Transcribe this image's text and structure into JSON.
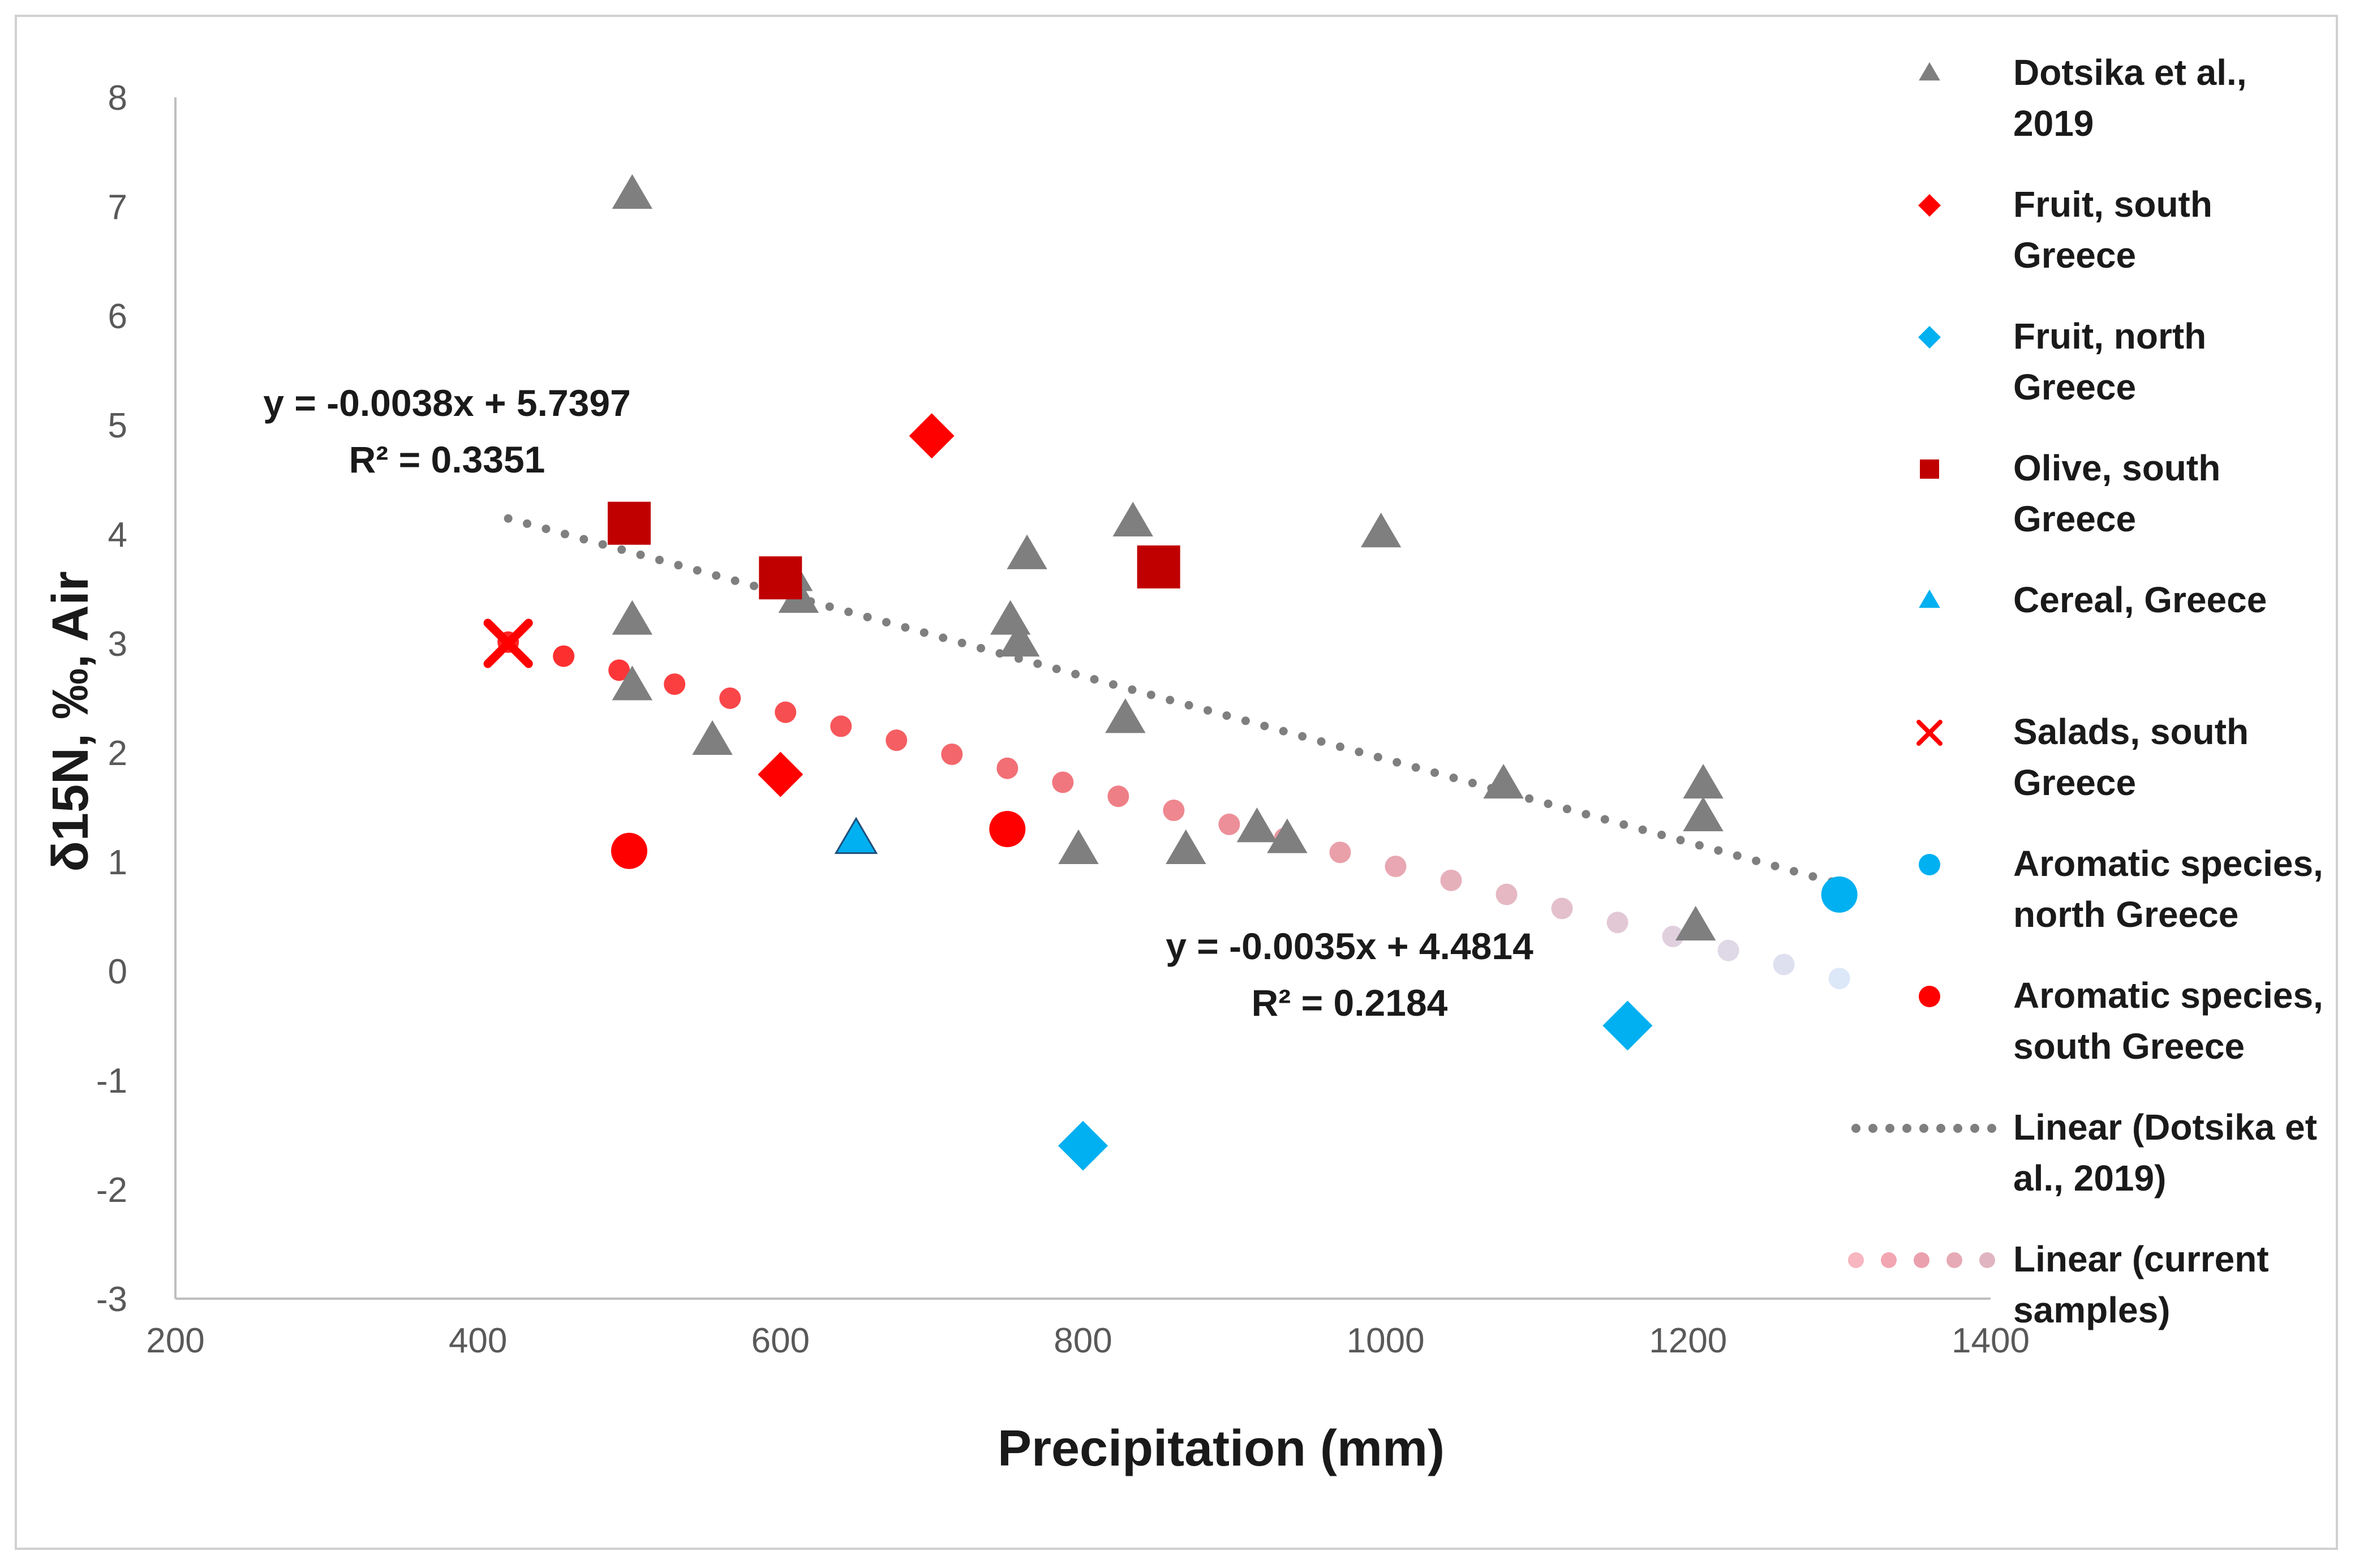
{
  "chart_data": {
    "type": "scatter",
    "xlabel": "Precipitation (mm)",
    "ylabel": "δ15N, ‰, Air",
    "xlim": [
      200,
      1400
    ],
    "ylim": [
      -3,
      8
    ],
    "xticks": [
      "200",
      "400",
      "600",
      "800",
      "1000",
      "1200",
      "1400"
    ],
    "yticks": [
      "-3",
      "-2",
      "-1",
      "0",
      "1",
      "2",
      "3",
      "4",
      "5",
      "6",
      "7",
      "8"
    ],
    "grid": false,
    "legend_position": "right",
    "series": [
      {
        "name": "Dotsika et al., 2019",
        "marker": "triangle",
        "color": "#7f7f7f",
        "size": 34,
        "points": [
          [
            502,
            7.1
          ],
          [
            502,
            3.2
          ],
          [
            502,
            2.6
          ],
          [
            555,
            2.1
          ],
          [
            608,
            3.6
          ],
          [
            612,
            3.4
          ],
          [
            752,
            3.2
          ],
          [
            758,
            3.0
          ],
          [
            763,
            3.8
          ],
          [
            797,
            1.1
          ],
          [
            828,
            2.3
          ],
          [
            833,
            4.1
          ],
          [
            868,
            1.1
          ],
          [
            915,
            1.3
          ],
          [
            935,
            1.2
          ],
          [
            997,
            4.0
          ],
          [
            1078,
            1.7
          ],
          [
            1205,
            0.4
          ],
          [
            1210,
            1.4
          ],
          [
            1210,
            1.7
          ]
        ]
      },
      {
        "name": "Fruit, south Greece",
        "marker": "diamond",
        "color": "#ff0000",
        "size": 40,
        "points": [
          [
            600,
            1.8
          ],
          [
            700,
            4.9
          ]
        ]
      },
      {
        "name": "Fruit, north Greece",
        "marker": "diamond",
        "color": "#00b0f0",
        "size": 44,
        "points": [
          [
            800,
            -1.6
          ],
          [
            1160,
            -0.5
          ]
        ]
      },
      {
        "name": "Olive, south Greece",
        "marker": "square",
        "color": "#c00000",
        "size": 38,
        "points": [
          [
            500,
            4.1
          ],
          [
            600,
            3.6
          ],
          [
            850,
            3.7
          ]
        ]
      },
      {
        "name": "Cereal, Greece",
        "marker": "triangle",
        "color": "#00b0f0",
        "size": 34,
        "points": [
          [
            650,
            1.2
          ]
        ]
      },
      {
        "name": "Salads, south Greece",
        "marker": "x",
        "color": "#ff0000",
        "size": 36,
        "points": [
          [
            420,
            3.0
          ]
        ]
      },
      {
        "name": "Aromatic species, north Greece",
        "marker": "circle",
        "color": "#00b0f0",
        "size": 32,
        "points": [
          [
            1300,
            0.7
          ]
        ]
      },
      {
        "name": "Aromatic species, south Greece",
        "marker": "circle",
        "color": "#ff0000",
        "size": 32,
        "points": [
          [
            500,
            1.1
          ],
          [
            750,
            1.3
          ]
        ]
      }
    ],
    "trendlines": [
      {
        "name": "Linear (Dotsika et al., 2019)",
        "slope": -0.0038,
        "intercept": 5.7397,
        "x_range": [
          420,
          1300
        ],
        "style": "gray-dots",
        "equation": "y = -0.0038x + 5.7397",
        "r2": "R² = 0.3351"
      },
      {
        "name": "Linear (current samples)",
        "slope": -0.0035,
        "intercept": 4.4814,
        "x_range": [
          420,
          1300
        ],
        "style": "red-to-lightblue-dots",
        "equation": "y = -0.0035x + 4.4814",
        "r2": "R² = 0.2184"
      }
    ]
  },
  "legend": [
    {
      "icon": "gray-triangle-icon",
      "lines": [
        "Dotsika et al.,",
        "2019"
      ]
    },
    {
      "icon": "red-diamond-icon",
      "lines": [
        "Fruit, south",
        "Greece"
      ]
    },
    {
      "icon": "blue-diamond-icon",
      "lines": [
        "Fruit, north",
        "Greece"
      ]
    },
    {
      "icon": "darkred-square-icon",
      "lines": [
        "Olive, south",
        "Greece"
      ]
    },
    {
      "icon": "blue-triangle-icon",
      "lines": [
        "Cereal, Greece"
      ]
    },
    {
      "icon": "red-x-icon",
      "lines": [
        "Salads, south",
        "Greece"
      ]
    },
    {
      "icon": "blue-circle-icon",
      "lines": [
        "Aromatic species,",
        "north Greece"
      ]
    },
    {
      "icon": "red-circle-icon",
      "lines": [
        "Aromatic species,",
        "south Greece"
      ]
    },
    {
      "icon": "gray-dotted-line-icon",
      "lines": [
        "Linear (Dotsika et",
        "al., 2019)"
      ]
    },
    {
      "icon": "red-dotted-line-icon",
      "lines": [
        "Linear (current",
        "samples)"
      ]
    }
  ]
}
